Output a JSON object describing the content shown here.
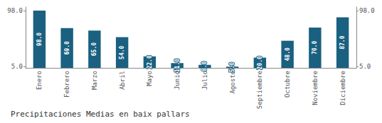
{
  "chart_data": {
    "type": "bar",
    "title": "Precipitaciones Medias en baix pallars",
    "categories": [
      "Enero",
      "Febrero",
      "Marzo",
      "Abril",
      "Mayo",
      "Junio",
      "Julio",
      "Agosto",
      "Septiembre",
      "Octubre",
      "Noviembre",
      "Diciembre"
    ],
    "values": [
      98,
      69,
      65,
      54,
      22,
      11,
      8,
      5,
      20,
      48,
      70,
      87
    ],
    "value_labels": [
      "98.0",
      "69.0",
      "65.0",
      "54.0",
      "22.0",
      "11.0",
      "8.0",
      "5.0",
      "20.0",
      "48.0",
      "70.0",
      "87.0"
    ],
    "color": "#1a6080",
    "ylim": [
      3,
      103.88
    ],
    "yticks": [
      {
        "value": 5,
        "label": "5.0"
      },
      {
        "value": 98,
        "label": "98.0"
      }
    ],
    "y2lim": [
      3,
      103.88
    ],
    "y2ticks": [
      {
        "value": 5,
        "label": "5.0"
      },
      {
        "value": 98,
        "label": "98.0"
      }
    ],
    "grid": false,
    "data_labels": true
  }
}
